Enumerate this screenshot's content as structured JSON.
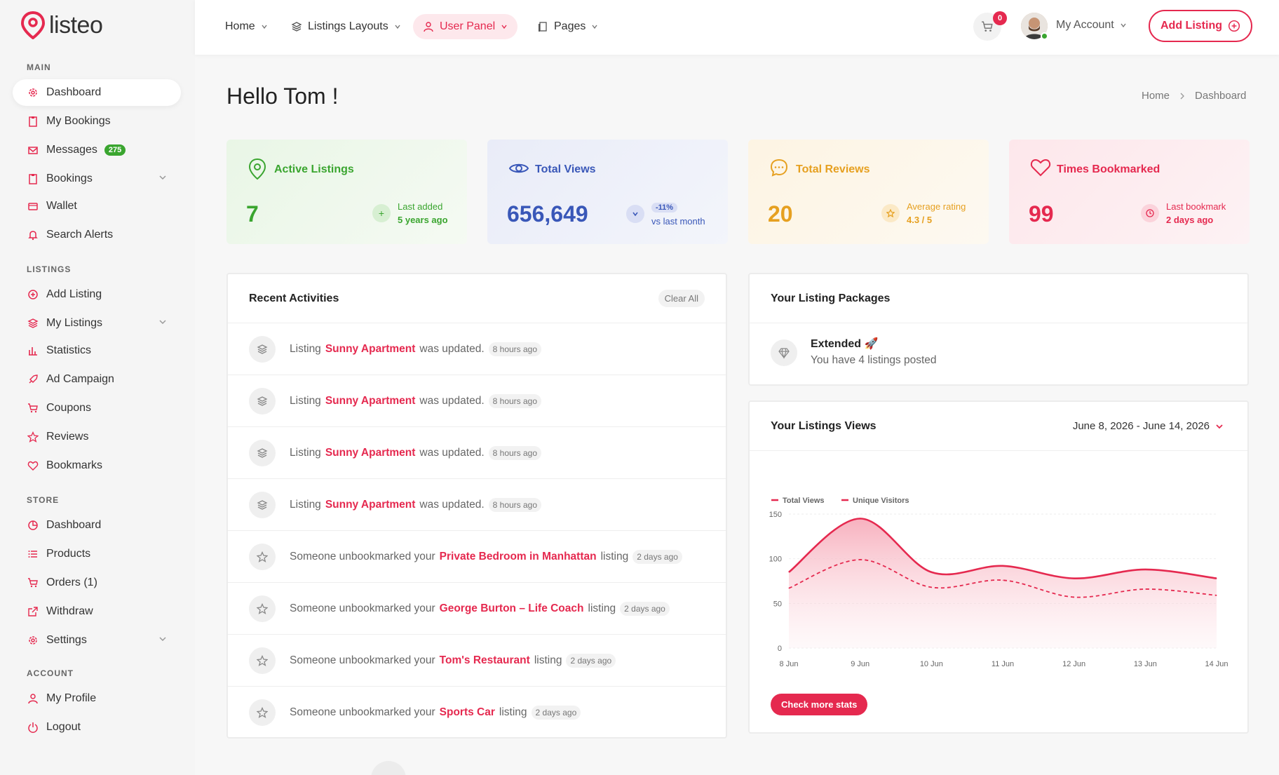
{
  "brand": {
    "name": "listeo"
  },
  "sidebar": {
    "sections": {
      "main": "MAIN",
      "listings": "LISTINGS",
      "store": "STORE",
      "account": "ACCOUNT"
    },
    "items": [
      {
        "label": "Dashboard",
        "icon": "gear-icon"
      },
      {
        "label": "My Bookings",
        "icon": "clipboard-icon"
      },
      {
        "label": "Messages",
        "icon": "envelope-icon",
        "badge": "275"
      },
      {
        "label": "Bookings",
        "icon": "clipboard-icon"
      },
      {
        "label": "Wallet",
        "icon": "wallet-icon"
      },
      {
        "label": "Search Alerts",
        "icon": "bell-icon"
      },
      {
        "label": "Add Listing",
        "icon": "plus-circle-icon"
      },
      {
        "label": "My Listings",
        "icon": "layers-icon"
      },
      {
        "label": "Statistics",
        "icon": "bar-chart-icon"
      },
      {
        "label": "Ad Campaign",
        "icon": "rocket-icon"
      },
      {
        "label": "Coupons",
        "icon": "cart-icon"
      },
      {
        "label": "Reviews",
        "icon": "star-icon"
      },
      {
        "label": "Bookmarks",
        "icon": "heart-icon"
      },
      {
        "label": "Dashboard",
        "icon": "pie-icon"
      },
      {
        "label": "Products",
        "icon": "list-icon"
      },
      {
        "label": "Orders (1)",
        "icon": "cart-icon"
      },
      {
        "label": "Withdraw",
        "icon": "external-icon"
      },
      {
        "label": "Settings",
        "icon": "gear-icon"
      },
      {
        "label": "My Profile",
        "icon": "user-icon"
      },
      {
        "label": "Logout",
        "icon": "power-icon"
      }
    ]
  },
  "header": {
    "menu": [
      "Home",
      "Listings Layouts",
      "User Panel",
      "Pages"
    ],
    "cart_count": "0",
    "account_label": "My Account",
    "add_listing": "Add Listing"
  },
  "page": {
    "title": "Hello Tom !",
    "breadcrumb": [
      "Home",
      "Dashboard"
    ]
  },
  "stats": [
    {
      "title": "Active Listings",
      "value": "7",
      "meta_label": "Last added",
      "meta_value": "5 years ago",
      "color": "#3aa52f"
    },
    {
      "title": "Total Views",
      "value": "656,649",
      "meta_badge": "-11%",
      "meta_value": "vs last month",
      "color": "#3957b8"
    },
    {
      "title": "Total Reviews",
      "value": "20",
      "meta_label": "Average rating",
      "meta_value": "4.3 / 5",
      "color": "#e6a020"
    },
    {
      "title": "Times Bookmarked",
      "value": "99",
      "meta_label": "Last bookmark",
      "meta_value": "2 days ago",
      "color": "#e5294f"
    }
  ],
  "activities": {
    "title": "Recent Activities",
    "clear_label": "Clear All",
    "rows": [
      {
        "pre": "Listing",
        "link": "Sunny Apartment",
        "post": "was updated.",
        "time": "8 hours ago",
        "icon": "layers-icon"
      },
      {
        "pre": "Listing",
        "link": "Sunny Apartment",
        "post": "was updated.",
        "time": "8 hours ago",
        "icon": "layers-icon"
      },
      {
        "pre": "Listing",
        "link": "Sunny Apartment",
        "post": "was updated.",
        "time": "8 hours ago",
        "icon": "layers-icon"
      },
      {
        "pre": "Listing",
        "link": "Sunny Apartment",
        "post": "was updated.",
        "time": "8 hours ago",
        "icon": "layers-icon"
      },
      {
        "pre": "Someone unbookmarked your",
        "link": "Private Bedroom in Manhattan",
        "post": "listing",
        "time": "2 days ago",
        "icon": "star-icon"
      },
      {
        "pre": "Someone unbookmarked your",
        "link": "George Burton – Life Coach",
        "post": "listing",
        "time": "2 days ago",
        "icon": "star-icon"
      },
      {
        "pre": "Someone unbookmarked your",
        "link": "Tom's Restaurant",
        "post": "listing",
        "time": "2 days ago",
        "icon": "star-icon"
      },
      {
        "pre": "Someone unbookmarked your",
        "link": "Sports Car",
        "post": "listing",
        "time": "2 days ago",
        "icon": "star-icon"
      }
    ]
  },
  "packages": {
    "title": "Your Listing Packages",
    "name": "Extended 🚀",
    "desc": "You have 4 listings posted"
  },
  "views": {
    "title": "Your Listings Views",
    "range": "June 8, 2026 - June 14, 2026",
    "button": "Check more stats"
  },
  "chart_data": {
    "type": "area",
    "categories": [
      "8 Jun",
      "9 Jun",
      "10 Jun",
      "11 Jun",
      "12 Jun",
      "13 Jun",
      "14 Jun"
    ],
    "ylim": [
      0,
      150
    ],
    "yticks": [
      0,
      50,
      100,
      150
    ],
    "series": [
      {
        "name": "Total Views",
        "values": [
          85,
          145,
          85,
          92,
          78,
          88,
          78
        ],
        "style": "solid",
        "color": "#e5294f"
      },
      {
        "name": "Unique Visitors",
        "values": [
          67,
          99,
          68,
          76,
          57,
          66,
          59
        ],
        "style": "dashed",
        "color": "#e5294f"
      }
    ]
  }
}
